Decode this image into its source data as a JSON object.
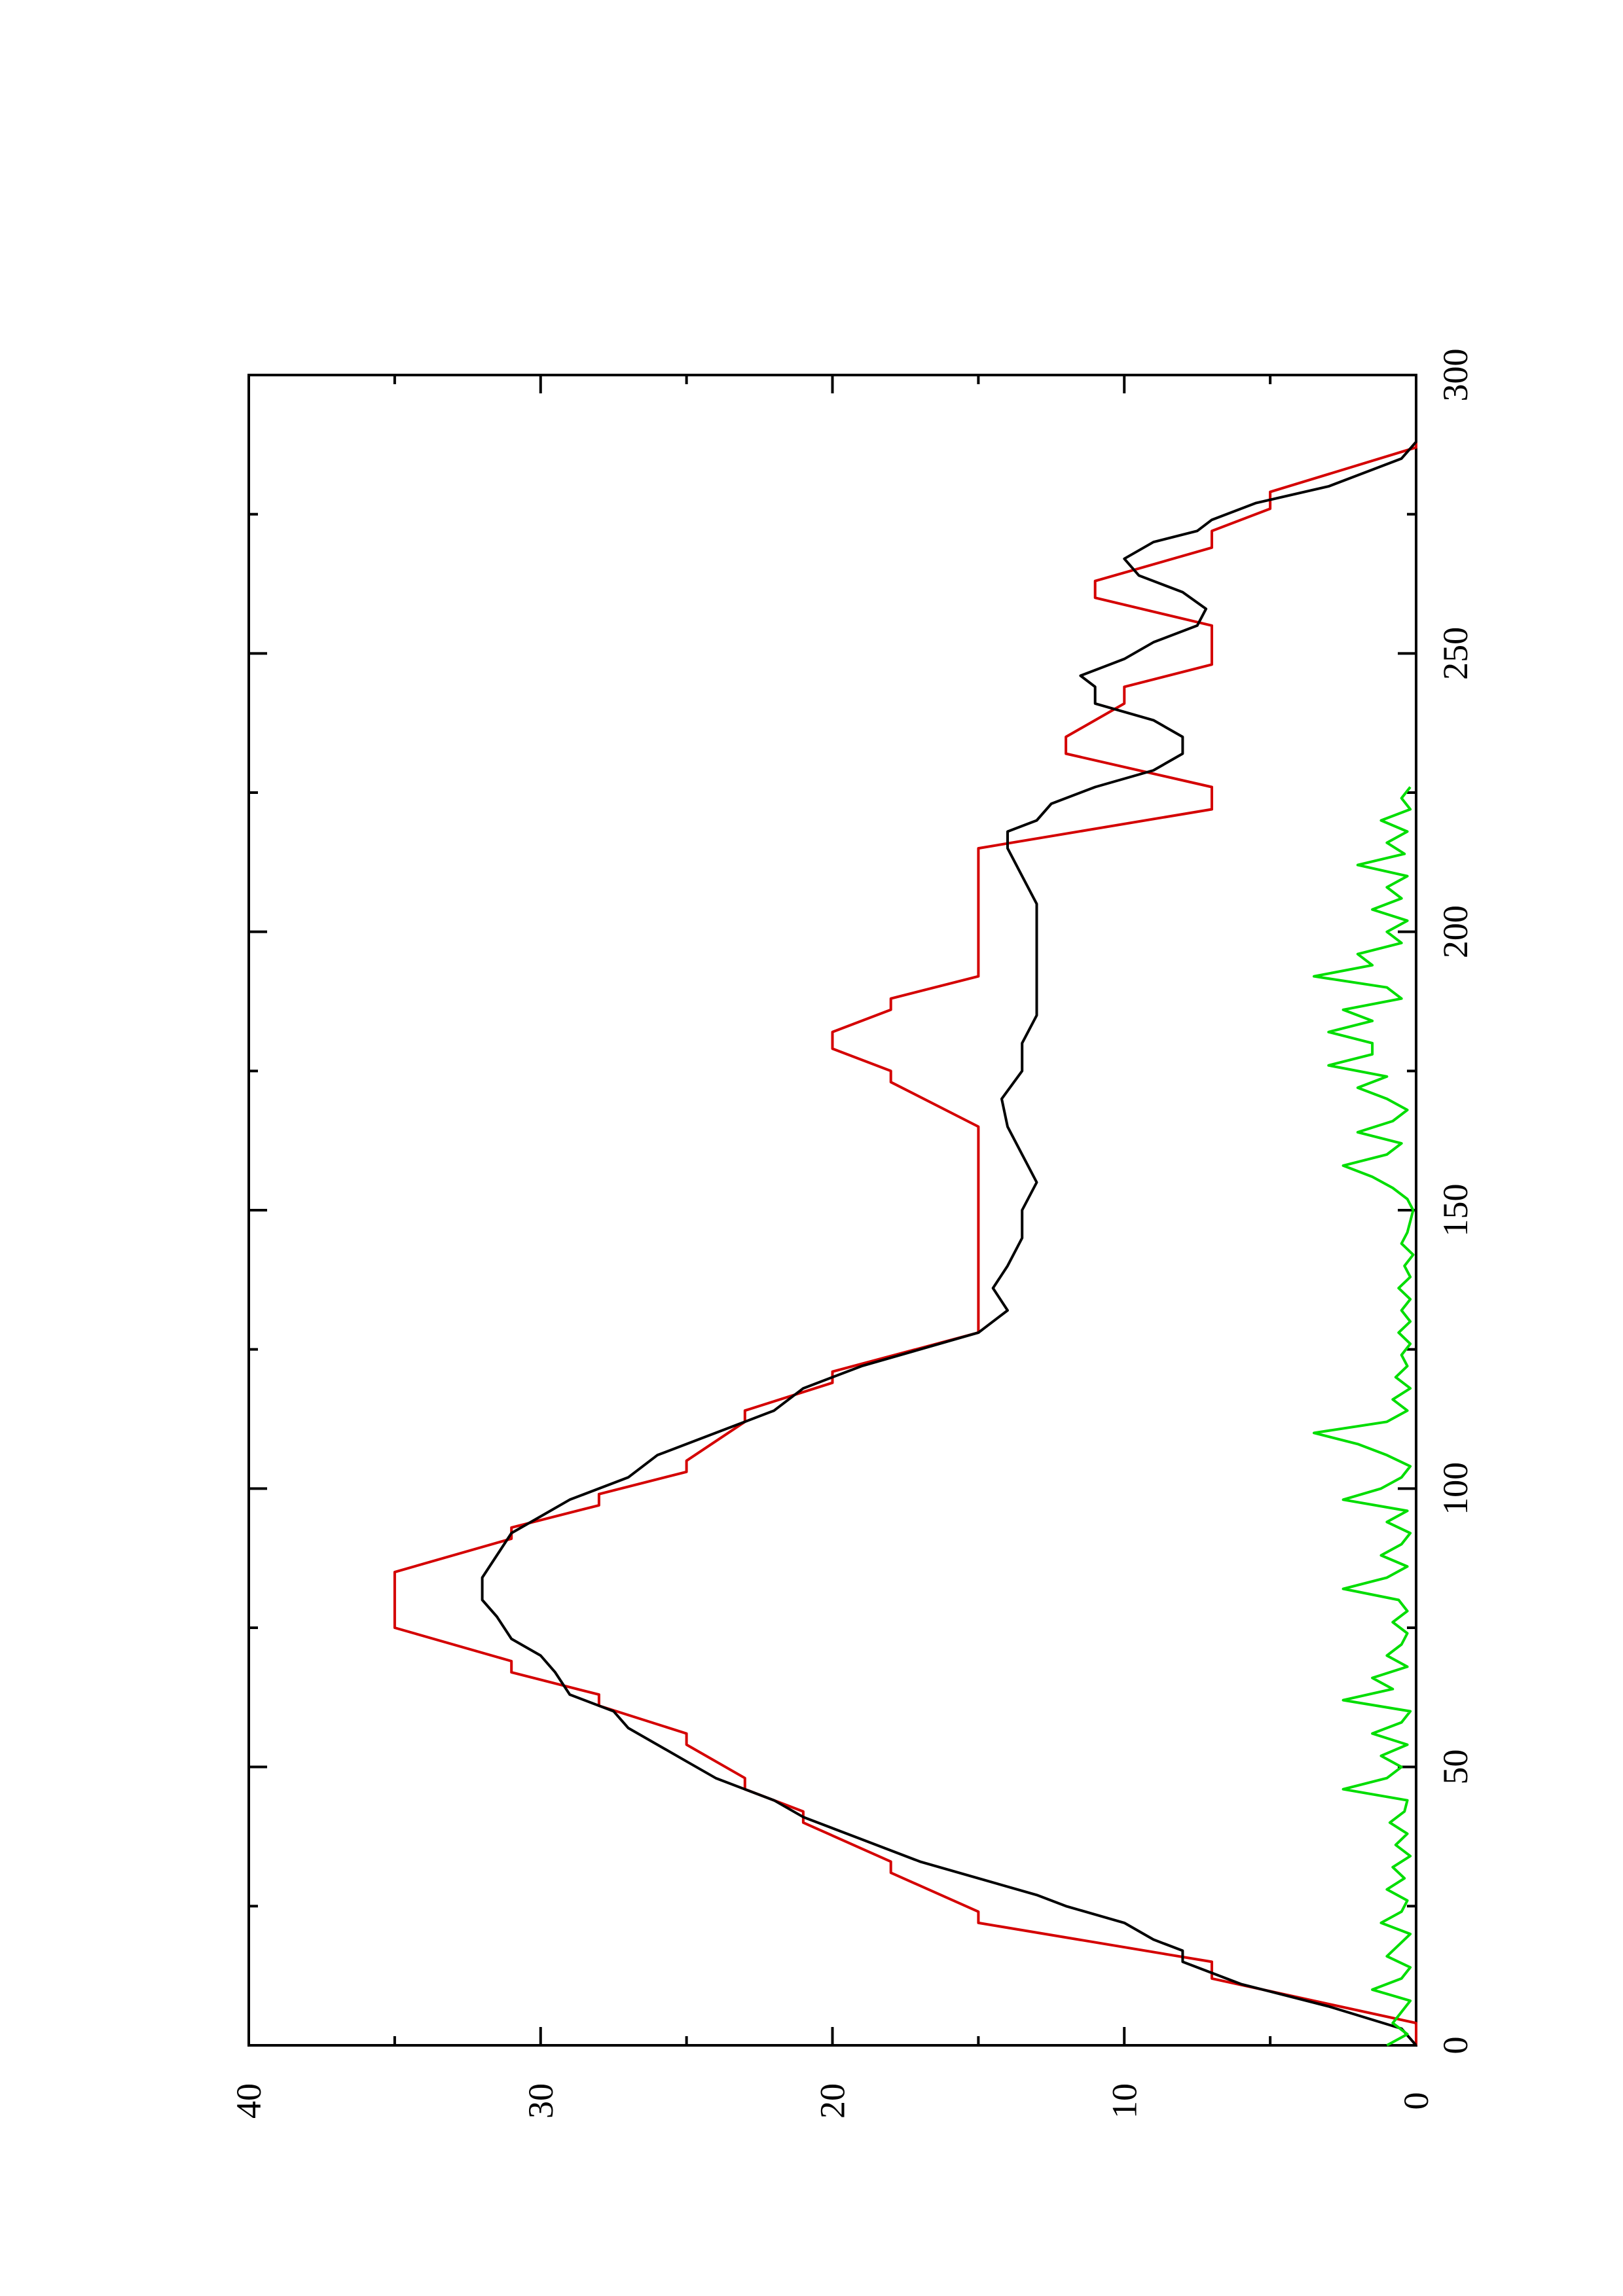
{
  "chart_data": {
    "type": "line",
    "orientation": "rotated-90-ccw",
    "title": "",
    "xlabel": "",
    "ylabel": "",
    "xlim": [
      0,
      300
    ],
    "ylim": [
      0,
      40
    ],
    "x_major_ticks": [
      0,
      50,
      100,
      150,
      200,
      250,
      300
    ],
    "x_tick_labels": [
      "0",
      "50",
      "100",
      "150",
      "200",
      "250",
      "300"
    ],
    "x_minor_ticks": [
      25,
      75,
      125,
      175,
      225,
      275
    ],
    "y_major_ticks": [
      0,
      10,
      20,
      30,
      40
    ],
    "y_tick_labels": [
      "0",
      "10",
      "20",
      "30",
      "40"
    ],
    "y_minor_ticks": [
      5,
      15,
      25,
      35
    ],
    "grid": false,
    "legend": "none",
    "series": [
      {
        "color": "#d40000",
        "style": "step-line",
        "points": [
          [
            0,
            0
          ],
          [
            4,
            0
          ],
          [
            12,
            7
          ],
          [
            15,
            7
          ],
          [
            22,
            15
          ],
          [
            24,
            15
          ],
          [
            31,
            18
          ],
          [
            33,
            18
          ],
          [
            40,
            21
          ],
          [
            42,
            21
          ],
          [
            46,
            23
          ],
          [
            48,
            23
          ],
          [
            54,
            25
          ],
          [
            56,
            25
          ],
          [
            61,
            28
          ],
          [
            63,
            28
          ],
          [
            67,
            31
          ],
          [
            69,
            31
          ],
          [
            75,
            35
          ],
          [
            85,
            35
          ],
          [
            91,
            31
          ],
          [
            93,
            31
          ],
          [
            97,
            28
          ],
          [
            99,
            28
          ],
          [
            103,
            25
          ],
          [
            105,
            25
          ],
          [
            112,
            23
          ],
          [
            114,
            23
          ],
          [
            119,
            20
          ],
          [
            121,
            20
          ],
          [
            128,
            15
          ],
          [
            165,
            15
          ],
          [
            173,
            18
          ],
          [
            175,
            18
          ],
          [
            179,
            20
          ],
          [
            182,
            20
          ],
          [
            186,
            18
          ],
          [
            188,
            18
          ],
          [
            192,
            15
          ],
          [
            215,
            15
          ],
          [
            222,
            7
          ],
          [
            226,
            7
          ],
          [
            232,
            12
          ],
          [
            235,
            12
          ],
          [
            241,
            10
          ],
          [
            244,
            10
          ],
          [
            248,
            7
          ],
          [
            255,
            7
          ],
          [
            260,
            11
          ],
          [
            263,
            11
          ],
          [
            269,
            7
          ],
          [
            272,
            7
          ],
          [
            276,
            5
          ],
          [
            279,
            5
          ],
          [
            287,
            0
          ],
          [
            300,
            0
          ]
        ]
      },
      {
        "color": "#000000",
        "style": "line",
        "points": [
          [
            0,
            0
          ],
          [
            3,
            0.5
          ],
          [
            7,
            3
          ],
          [
            11,
            6
          ],
          [
            13,
            7
          ],
          [
            15,
            8
          ],
          [
            17,
            8
          ],
          [
            19,
            9
          ],
          [
            22,
            10
          ],
          [
            25,
            12
          ],
          [
            27,
            13
          ],
          [
            30,
            15
          ],
          [
            33,
            17
          ],
          [
            37,
            19
          ],
          [
            41,
            21
          ],
          [
            44,
            22
          ],
          [
            48,
            24
          ],
          [
            51,
            25
          ],
          [
            54,
            26
          ],
          [
            57,
            27
          ],
          [
            60,
            27.5
          ],
          [
            63,
            29
          ],
          [
            67,
            29.5
          ],
          [
            70,
            30
          ],
          [
            73,
            31
          ],
          [
            77,
            31.5
          ],
          [
            80,
            32
          ],
          [
            84,
            32
          ],
          [
            88,
            31.5
          ],
          [
            92,
            31
          ],
          [
            95,
            30
          ],
          [
            98,
            29
          ],
          [
            102,
            27
          ],
          [
            106,
            26
          ],
          [
            110,
            24
          ],
          [
            114,
            22
          ],
          [
            118,
            21
          ],
          [
            122,
            19
          ],
          [
            125,
            17
          ],
          [
            128,
            15
          ],
          [
            132,
            14
          ],
          [
            136,
            14.5
          ],
          [
            140,
            14
          ],
          [
            145,
            13.5
          ],
          [
            150,
            13.5
          ],
          [
            155,
            13
          ],
          [
            160,
            13.5
          ],
          [
            165,
            14
          ],
          [
            170,
            14.2
          ],
          [
            175,
            13.5
          ],
          [
            180,
            13.5
          ],
          [
            185,
            13
          ],
          [
            190,
            13
          ],
          [
            195,
            13
          ],
          [
            200,
            13
          ],
          [
            205,
            13
          ],
          [
            210,
            13.5
          ],
          [
            215,
            14
          ],
          [
            218,
            14
          ],
          [
            220,
            13
          ],
          [
            223,
            12.5
          ],
          [
            226,
            11
          ],
          [
            229,
            9
          ],
          [
            232,
            8
          ],
          [
            235,
            8
          ],
          [
            238,
            9
          ],
          [
            241,
            11
          ],
          [
            244,
            11
          ],
          [
            246,
            11.5
          ],
          [
            249,
            10
          ],
          [
            252,
            9
          ],
          [
            255,
            7.5
          ],
          [
            258,
            7.2
          ],
          [
            261,
            8
          ],
          [
            264,
            9.5
          ],
          [
            267,
            10
          ],
          [
            270,
            9
          ],
          [
            272,
            7.5
          ],
          [
            274,
            7
          ],
          [
            277,
            5.5
          ],
          [
            280,
            3
          ],
          [
            282,
            2
          ],
          [
            285,
            0.5
          ],
          [
            288,
            0
          ],
          [
            300,
            0
          ]
        ]
      },
      {
        "color": "#00dd00",
        "style": "line",
        "points": [
          [
            0,
            1
          ],
          [
            2,
            0.3
          ],
          [
            4,
            0.8
          ],
          [
            6,
            0.5
          ],
          [
            8,
            0.2
          ],
          [
            10,
            1.5
          ],
          [
            12,
            0.5
          ],
          [
            14,
            0.2
          ],
          [
            16,
            1
          ],
          [
            18,
            0.6
          ],
          [
            20,
            0.2
          ],
          [
            22,
            1.2
          ],
          [
            24,
            0.5
          ],
          [
            26,
            0.3
          ],
          [
            28,
            1
          ],
          [
            30,
            0.4
          ],
          [
            32,
            0.8
          ],
          [
            34,
            0.2
          ],
          [
            36,
            0.7
          ],
          [
            38,
            0.3
          ],
          [
            40,
            0.9
          ],
          [
            42,
            0.4
          ],
          [
            44,
            0.3
          ],
          [
            46,
            2.5
          ],
          [
            48,
            1
          ],
          [
            50,
            0.5
          ],
          [
            52,
            1.2
          ],
          [
            54,
            0.3
          ],
          [
            56,
            1.5
          ],
          [
            58,
            0.5
          ],
          [
            60,
            0.2
          ],
          [
            62,
            2.5
          ],
          [
            64,
            0.8
          ],
          [
            66,
            1.5
          ],
          [
            68,
            0.3
          ],
          [
            70,
            1
          ],
          [
            72,
            0.5
          ],
          [
            74,
            0.3
          ],
          [
            76,
            0.8
          ],
          [
            78,
            0.3
          ],
          [
            80,
            0.6
          ],
          [
            82,
            2.5
          ],
          [
            84,
            1
          ],
          [
            86,
            0.3
          ],
          [
            88,
            1.2
          ],
          [
            90,
            0.5
          ],
          [
            92,
            0.2
          ],
          [
            94,
            1
          ],
          [
            96,
            0.3
          ],
          [
            98,
            2.5
          ],
          [
            100,
            1.2
          ],
          [
            102,
            0.5
          ],
          [
            104,
            0.2
          ],
          [
            106,
            1
          ],
          [
            108,
            2
          ],
          [
            110,
            3.5
          ],
          [
            112,
            1
          ],
          [
            114,
            0.3
          ],
          [
            116,
            0.8
          ],
          [
            118,
            0.2
          ],
          [
            120,
            0.7
          ],
          [
            122,
            0.3
          ],
          [
            124,
            0.5
          ],
          [
            126,
            0.2
          ],
          [
            128,
            0.6
          ],
          [
            130,
            0.2
          ],
          [
            132,
            0.5
          ],
          [
            134,
            0.2
          ],
          [
            136,
            0.6
          ],
          [
            138,
            0.2
          ],
          [
            140,
            0.4
          ],
          [
            142,
            0.1
          ],
          [
            144,
            0.5
          ],
          [
            146,
            0.3
          ],
          [
            148,
            0.2
          ],
          [
            150,
            0.1
          ],
          [
            152,
            0.3
          ],
          [
            154,
            0.8
          ],
          [
            156,
            1.5
          ],
          [
            158,
            2.5
          ],
          [
            160,
            1
          ],
          [
            162,
            0.5
          ],
          [
            164,
            2
          ],
          [
            166,
            0.8
          ],
          [
            168,
            0.3
          ],
          [
            170,
            1
          ],
          [
            172,
            2
          ],
          [
            174,
            1
          ],
          [
            176,
            3
          ],
          [
            178,
            1.5
          ],
          [
            180,
            1.5
          ],
          [
            182,
            3
          ],
          [
            184,
            1.5
          ],
          [
            186,
            2.5
          ],
          [
            188,
            0.5
          ],
          [
            190,
            1
          ],
          [
            192,
            3.5
          ],
          [
            194,
            1.5
          ],
          [
            196,
            2
          ],
          [
            198,
            0.5
          ],
          [
            200,
            1
          ],
          [
            202,
            0.3
          ],
          [
            204,
            1.5
          ],
          [
            206,
            0.5
          ],
          [
            208,
            1
          ],
          [
            210,
            0.3
          ],
          [
            212,
            2
          ],
          [
            214,
            0.4
          ],
          [
            216,
            1
          ],
          [
            218,
            0.3
          ],
          [
            220,
            1.2
          ],
          [
            222,
            0.2
          ],
          [
            224,
            0.5
          ],
          [
            226,
            0.2
          ]
        ]
      }
    ]
  }
}
